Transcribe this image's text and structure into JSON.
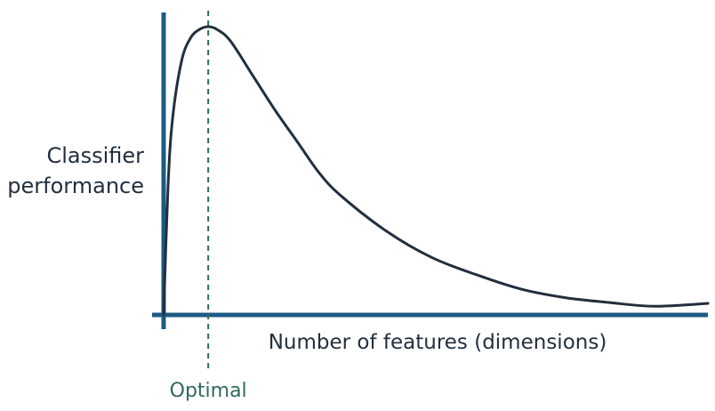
{
  "chart_data": {
    "type": "line",
    "title": "",
    "xlabel": "Number of features (dimensions)",
    "ylabel_lines": [
      "Classifier",
      "performance"
    ],
    "annotation": {
      "label": "Optimal",
      "x": 1
    },
    "xlim": [
      0,
      12.2
    ],
    "ylim": [
      0,
      1
    ],
    "grid": false,
    "axis_tick_labels": false,
    "colors": {
      "axis": "#1d5a83",
      "curve": "#232f3e",
      "optimal": "#2f6b5a",
      "text": "#232f3e"
    },
    "series": [
      {
        "x": [
          0,
          0.1,
          0.2,
          0.4,
          0.6,
          0.8,
          1.0,
          1.2,
          1.5,
          2.0,
          2.5,
          3.0,
          3.5,
          4.0,
          5.0,
          6.0,
          7.0,
          8.0,
          9.0,
          10.0,
          11.0,
          12.2
        ],
        "values": [
          0,
          0.45,
          0.68,
          0.88,
          0.96,
          0.99,
          1.0,
          0.99,
          0.95,
          0.83,
          0.71,
          0.6,
          0.49,
          0.41,
          0.29,
          0.2,
          0.14,
          0.09,
          0.06,
          0.043,
          0.03,
          0.04
        ]
      }
    ]
  }
}
